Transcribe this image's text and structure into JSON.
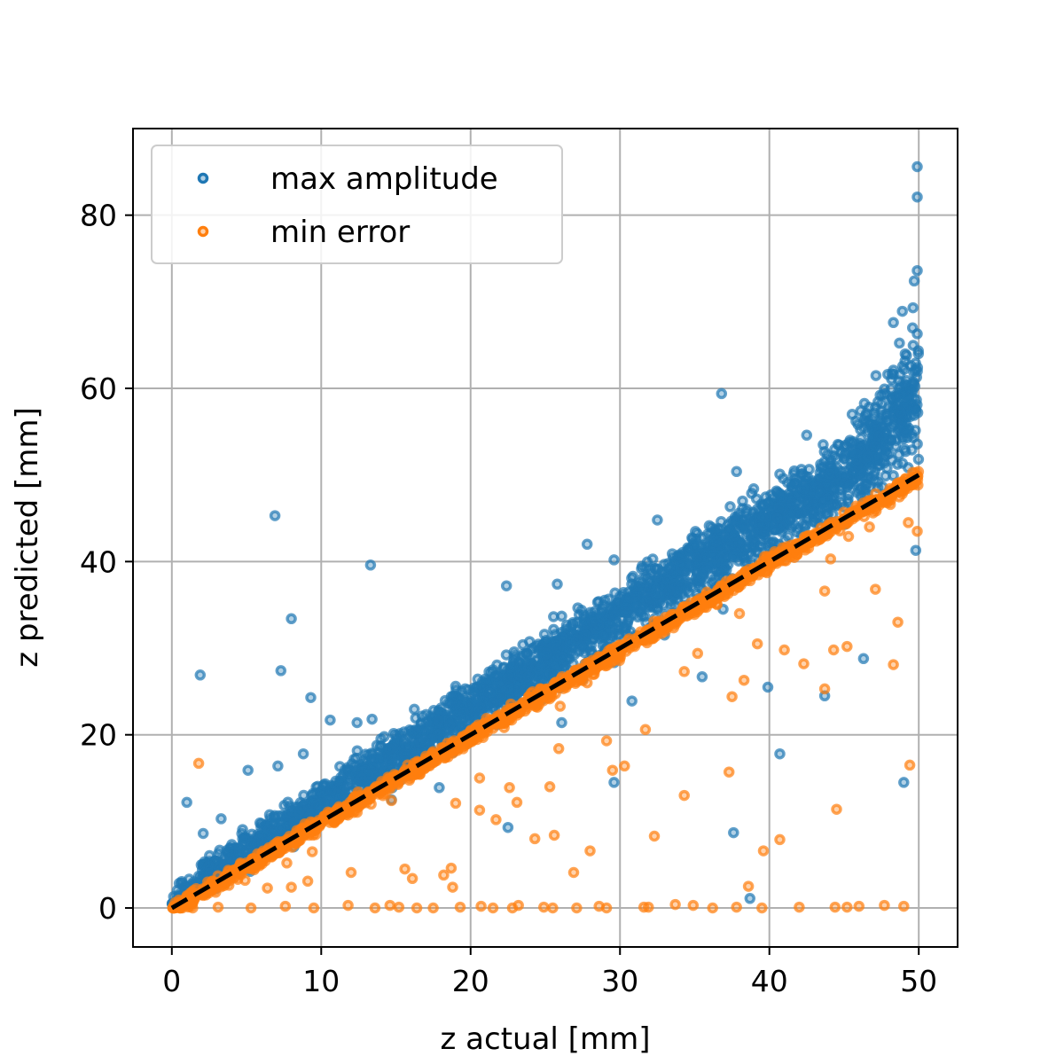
{
  "chart_data": {
    "type": "scatter",
    "title": "",
    "xlabel": "z actual [mm]",
    "ylabel": "z predicted [mm]",
    "xlim": [
      -2.6,
      52.6
    ],
    "ylim": [
      -4.5,
      90.0
    ],
    "xticks": [
      0,
      10,
      20,
      30,
      40,
      50
    ],
    "yticks": [
      0,
      20,
      40,
      60,
      80
    ],
    "grid": true,
    "legend_position": "top-left",
    "reference_line": {
      "name": "y = x",
      "x": [
        0,
        50
      ],
      "y": [
        0,
        50
      ],
      "color": "#000000",
      "style": "dashed"
    },
    "series": [
      {
        "name": "max amplitude",
        "color": "#1f77b4",
        "trend": "about 1.2 times z actual with scatter, widening and curving upward above 45 mm",
        "outliers": [
          [
            6.9,
            45.3
          ],
          [
            13.3,
            39.6
          ],
          [
            8.0,
            33.4
          ],
          [
            7.3,
            27.4
          ],
          [
            1.9,
            26.9
          ],
          [
            36.8,
            59.4
          ],
          [
            49.9,
            85.6
          ],
          [
            49.9,
            82.1
          ],
          [
            49.9,
            73.6
          ],
          [
            49.7,
            72.4
          ],
          [
            48.9,
            68.9
          ],
          [
            48.3,
            67.6
          ],
          [
            49.9,
            66.3
          ],
          [
            40.7,
            17.8
          ],
          [
            43.7,
            24.5
          ],
          [
            46.3,
            28.8
          ],
          [
            38.7,
            1.1
          ],
          [
            29.6,
            14.5
          ],
          [
            49.0,
            14.5
          ],
          [
            37.6,
            8.7
          ],
          [
            49.8,
            41.3
          ],
          [
            22.4,
            37.2
          ],
          [
            25.8,
            37.4
          ],
          [
            29.6,
            40.2
          ],
          [
            36.9,
            34.5
          ],
          [
            39.9,
            25.5
          ],
          [
            35.5,
            26.7
          ],
          [
            32.5,
            44.8
          ],
          [
            27.8,
            42.0
          ],
          [
            37.8,
            50.4
          ],
          [
            40.7,
            50.1
          ],
          [
            42.5,
            54.6
          ],
          [
            1.0,
            12.2
          ],
          [
            5.1,
            15.9
          ],
          [
            7.1,
            16.4
          ],
          [
            8.8,
            17.8
          ],
          [
            9.3,
            24.3
          ],
          [
            10.6,
            21.7
          ],
          [
            12.4,
            21.4
          ],
          [
            13.4,
            21.8
          ],
          [
            3.3,
            10.3
          ],
          [
            2.1,
            8.6
          ],
          [
            16.0,
            20.1
          ],
          [
            19.0,
            25.6
          ],
          [
            21.4,
            27.2
          ],
          [
            23.5,
            30.4
          ],
          [
            26.1,
            33.7
          ],
          [
            28.5,
            35.3
          ],
          [
            31.4,
            37.6
          ],
          [
            33.5,
            40.9
          ],
          [
            35.1,
            42.6
          ],
          [
            38.3,
            44.2
          ],
          [
            40.1,
            47.7
          ],
          [
            41.8,
            49.0
          ],
          [
            43.6,
            53.5
          ],
          [
            45.4,
            54.0
          ],
          [
            46.5,
            57.1
          ],
          [
            47.6,
            59.3
          ],
          [
            48.3,
            62.1
          ],
          [
            49.2,
            60.9
          ],
          [
            44.0,
            50.1
          ],
          [
            46.6,
            52.1
          ],
          [
            47.7,
            55.0
          ],
          [
            14.7,
            12.5
          ],
          [
            18.9,
            18.6
          ],
          [
            22.5,
            9.3
          ],
          [
            30.8,
            23.9
          ],
          [
            26.1,
            21.4
          ],
          [
            17.9,
            13.9
          ],
          [
            27.5,
            26.4
          ]
        ]
      },
      {
        "name": "min error",
        "color": "#ff7f0e",
        "trend": "close to y = x, with a cluster of points near 0 and scattered underestimates",
        "outliers": [
          [
            1.8,
            16.7
          ],
          [
            49.4,
            16.5
          ],
          [
            44.5,
            11.4
          ],
          [
            40.7,
            7.9
          ],
          [
            39.6,
            6.6
          ],
          [
            37.3,
            15.7
          ],
          [
            34.3,
            13.0
          ],
          [
            32.3,
            8.3
          ],
          [
            30.3,
            16.4
          ],
          [
            29.5,
            15.9
          ],
          [
            29.1,
            19.3
          ],
          [
            28.0,
            6.6
          ],
          [
            26.9,
            4.1
          ],
          [
            25.6,
            8.4
          ],
          [
            25.3,
            14.0
          ],
          [
            25.9,
            18.4
          ],
          [
            24.3,
            8.0
          ],
          [
            23.1,
            12.2
          ],
          [
            22.6,
            13.9
          ],
          [
            21.7,
            10.2
          ],
          [
            20.6,
            11.3
          ],
          [
            20.6,
            15.0
          ],
          [
            19.0,
            12.1
          ],
          [
            18.7,
            4.6
          ],
          [
            18.2,
            3.8
          ],
          [
            18.8,
            2.4
          ],
          [
            16.1,
            3.4
          ],
          [
            15.6,
            4.5
          ],
          [
            14.7,
            12.4
          ],
          [
            8.9,
            9.7
          ],
          [
            8.3,
            8.6
          ],
          [
            9.4,
            6.5
          ],
          [
            9.1,
            3.1
          ],
          [
            8.0,
            2.4
          ],
          [
            7.7,
            5.2
          ],
          [
            6.4,
            2.3
          ],
          [
            4.9,
            3.2
          ],
          [
            3.3,
            2.6
          ],
          [
            12.0,
            4.1
          ],
          [
            10.9,
            10.9
          ],
          [
            27.8,
            26.0
          ],
          [
            31.7,
            20.6
          ],
          [
            34.3,
            27.3
          ],
          [
            35.2,
            29.4
          ],
          [
            37.5,
            24.4
          ],
          [
            38.3,
            26.3
          ],
          [
            39.2,
            30.5
          ],
          [
            41.0,
            29.8
          ],
          [
            42.3,
            28.2
          ],
          [
            43.7,
            25.3
          ],
          [
            44.3,
            29.8
          ],
          [
            45.2,
            30.2
          ],
          [
            47.1,
            36.8
          ],
          [
            48.6,
            33.0
          ],
          [
            48.3,
            28.1
          ],
          [
            49.9,
            43.5
          ],
          [
            49.3,
            44.5
          ],
          [
            48.1,
            46.6
          ],
          [
            46.7,
            44.0
          ],
          [
            45.3,
            42.9
          ],
          [
            44.1,
            40.3
          ],
          [
            38.0,
            34.0
          ],
          [
            26.0,
            23.3
          ],
          [
            43.7,
            36.6
          ],
          [
            38.6,
            2.5
          ],
          [
            42.0,
            0.1
          ],
          [
            45.2,
            0.1
          ],
          [
            47.7,
            0.3
          ],
          [
            49.0,
            0.2
          ],
          [
            36.2,
            0.0
          ],
          [
            33.7,
            0.4
          ],
          [
            31.9,
            0.1
          ],
          [
            28.6,
            0.2
          ],
          [
            27.1,
            0.0
          ],
          [
            25.5,
            0.0
          ],
          [
            23.2,
            0.3
          ],
          [
            21.5,
            0.0
          ],
          [
            19.3,
            0.1
          ],
          [
            17.5,
            0.0
          ],
          [
            15.2,
            0.1
          ],
          [
            13.6,
            0.0
          ],
          [
            11.8,
            0.3
          ],
          [
            9.5,
            0.0
          ],
          [
            7.6,
            0.2
          ],
          [
            5.3,
            0.0
          ],
          [
            3.1,
            0.1
          ],
          [
            1.4,
            0.0
          ],
          [
            0.2,
            0.2
          ],
          [
            14.6,
            0.3
          ],
          [
            16.4,
            0.0
          ],
          [
            20.7,
            0.2
          ],
          [
            22.8,
            0.0
          ],
          [
            24.9,
            0.1
          ],
          [
            29.1,
            0.0
          ],
          [
            31.6,
            0.1
          ],
          [
            34.9,
            0.3
          ],
          [
            37.8,
            0.1
          ],
          [
            39.5,
            0.0
          ],
          [
            44.4,
            0.1
          ],
          [
            46.0,
            0.2
          ]
        ]
      }
    ],
    "legend": [
      "max amplitude",
      "min error"
    ]
  }
}
